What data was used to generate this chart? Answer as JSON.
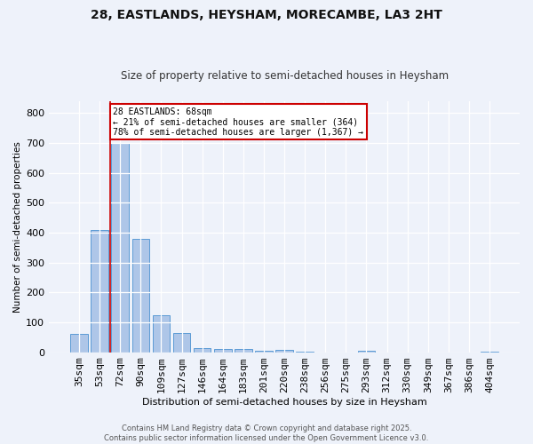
{
  "title_line1": "28, EASTLANDS, HEYSHAM, MORECAMBE, LA3 2HT",
  "title_line2": "Size of property relative to semi-detached houses in Heysham",
  "xlabel": "Distribution of semi-detached houses by size in Heysham",
  "ylabel": "Number of semi-detached properties",
  "categories": [
    "35sqm",
    "53sqm",
    "72sqm",
    "90sqm",
    "109sqm",
    "127sqm",
    "146sqm",
    "164sqm",
    "183sqm",
    "201sqm",
    "220sqm",
    "238sqm",
    "256sqm",
    "275sqm",
    "293sqm",
    "312sqm",
    "330sqm",
    "349sqm",
    "367sqm",
    "386sqm",
    "404sqm"
  ],
  "values": [
    62,
    410,
    700,
    380,
    125,
    65,
    15,
    12,
    10,
    5,
    7,
    1,
    0,
    0,
    5,
    0,
    0,
    0,
    0,
    0,
    1
  ],
  "bar_color": "#aec6e8",
  "bar_edge_color": "#5b9bd5",
  "marker_color": "#cc0000",
  "annotation_text": "28 EASTLANDS: 68sqm\n← 21% of semi-detached houses are smaller (364)\n78% of semi-detached houses are larger (1,367) →",
  "annotation_box_color": "#ffffff",
  "annotation_box_edge_color": "#cc0000",
  "ylim": [
    0,
    840
  ],
  "yticks": [
    0,
    100,
    200,
    300,
    400,
    500,
    600,
    700,
    800
  ],
  "background_color": "#eef2fa",
  "grid_color": "#ffffff",
  "footer_text": "Contains HM Land Registry data © Crown copyright and database right 2025.\nContains public sector information licensed under the Open Government Licence v3.0."
}
